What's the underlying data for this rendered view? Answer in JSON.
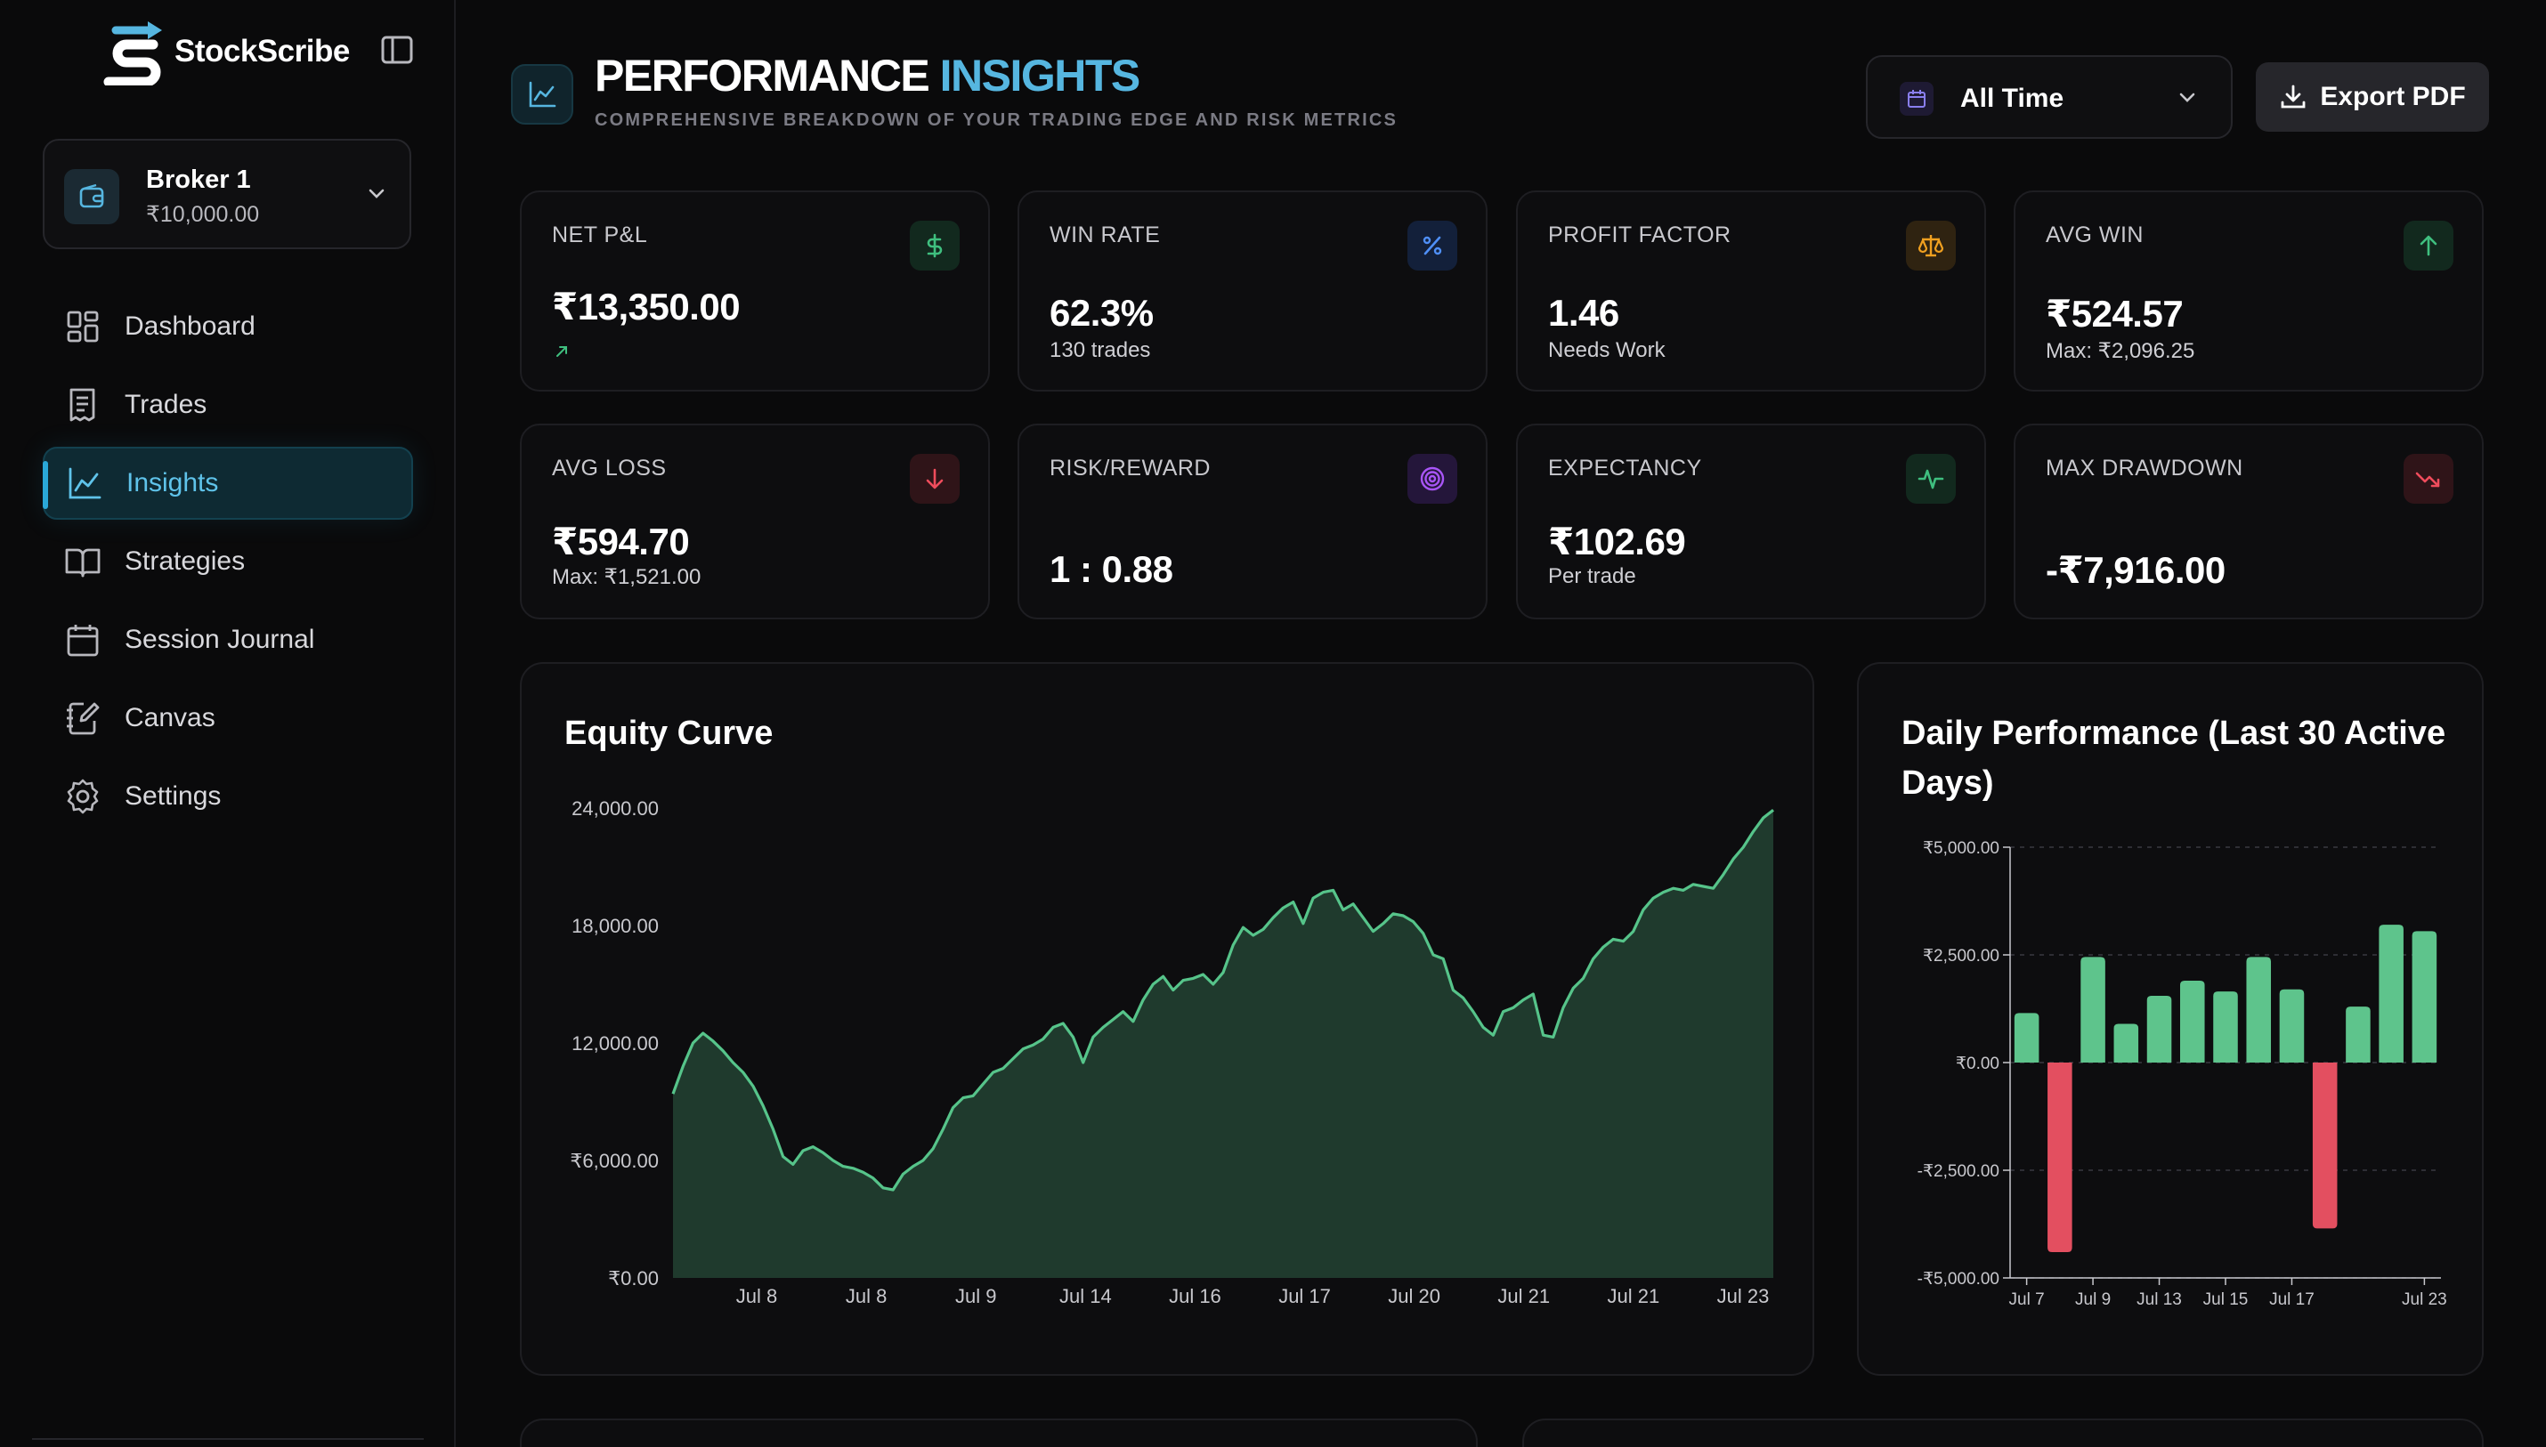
{
  "brand": {
    "name": "StockScribe"
  },
  "broker": {
    "name": "Broker 1",
    "balance": "₹10,000.00"
  },
  "nav": {
    "items": [
      {
        "label": "Dashboard",
        "icon": "dashboard-icon",
        "active": false
      },
      {
        "label": "Trades",
        "icon": "receipt-icon",
        "active": false
      },
      {
        "label": "Insights",
        "icon": "chart-icon",
        "active": true
      },
      {
        "label": "Strategies",
        "icon": "book-icon",
        "active": false
      },
      {
        "label": "Session Journal",
        "icon": "calendar-icon",
        "active": false
      },
      {
        "label": "Canvas",
        "icon": "notebook-pen-icon",
        "active": false
      },
      {
        "label": "Settings",
        "icon": "gear-icon",
        "active": false
      }
    ]
  },
  "header": {
    "title_main": "PERFORMANCE",
    "title_accent": "INSIGHTS",
    "subtitle": "COMPREHENSIVE BREAKDOWN OF YOUR TRADING EDGE AND RISK METRICS",
    "range_label": "All Time",
    "export_label": "Export PDF"
  },
  "stats": [
    {
      "title": "NET P&L",
      "value": "₹13,350.00",
      "sub": "",
      "icon": "dollar-icon",
      "color": "#3fbf7f"
    },
    {
      "title": "WIN RATE",
      "value": "62.3%",
      "sub": "130 trades",
      "icon": "percent-icon",
      "color": "#4f8ff7"
    },
    {
      "title": "PROFIT FACTOR",
      "value": "1.46",
      "sub": "Needs Work",
      "icon": "scale-icon",
      "color": "#f0a020"
    },
    {
      "title": "AVG WIN",
      "value": "₹524.57",
      "sub": "Max: ₹2,096.25",
      "icon": "arrow-up-icon",
      "color": "#3fbf7f"
    },
    {
      "title": "AVG LOSS",
      "value": "₹594.70",
      "sub": "Max: ₹1,521.00",
      "icon": "arrow-down-icon",
      "color": "#ef4c5c"
    },
    {
      "title": "RISK/REWARD",
      "value": "1 : 0.88",
      "sub": "",
      "icon": "target-icon",
      "color": "#a855f7"
    },
    {
      "title": "EXPECTANCY",
      "value": "₹102.69",
      "sub": "Per trade",
      "icon": "activity-icon",
      "color": "#3fbf7f"
    },
    {
      "title": "MAX DRAWDOWN",
      "value": "-₹7,916.00",
      "sub": "",
      "icon": "trend-down-icon",
      "color": "#ef4c5c"
    }
  ],
  "equity": {
    "title": "Equity Curve"
  },
  "daily": {
    "title": "Daily Performance (Last 30 Active Days)"
  },
  "chart_data": [
    {
      "type": "area",
      "title": "Equity Curve",
      "ylim": [
        0,
        24000
      ],
      "yticks": [
        "24,000.00",
        "18,000.00",
        "12,000.00",
        "₹6,000.00",
        "₹0.00"
      ],
      "ytick_values": [
        24000,
        18000,
        12000,
        6000,
        0
      ],
      "xticks": [
        "Jul 8",
        "Jul 8",
        "Jul 9",
        "Jul 14",
        "Jul 16",
        "Jul 17",
        "Jul 20",
        "Jul 21",
        "Jul 21",
        "Jul 23"
      ],
      "color": "#56c48a",
      "values": [
        9400,
        10800,
        12000,
        12500,
        12100,
        11600,
        11000,
        10500,
        9800,
        8800,
        7600,
        6200,
        5800,
        6500,
        6700,
        6400,
        6000,
        5700,
        5600,
        5400,
        5100,
        4600,
        4500,
        5300,
        5700,
        6000,
        6600,
        7600,
        8700,
        9200,
        9300,
        9900,
        10500,
        10700,
        11200,
        11700,
        11900,
        12200,
        12800,
        13000,
        12300,
        11000,
        12300,
        12800,
        13200,
        13600,
        13100,
        14200,
        15000,
        15400,
        14700,
        15200,
        15300,
        15500,
        15000,
        15600,
        17000,
        17900,
        17500,
        17800,
        18400,
        18900,
        19200,
        18100,
        19400,
        19700,
        19800,
        18800,
        19100,
        18400,
        17700,
        18100,
        18600,
        18500,
        18200,
        17600,
        16500,
        16300,
        14700,
        14300,
        13600,
        12800,
        12400,
        13600,
        13800,
        14200,
        14500,
        12400,
        12300,
        13800,
        14800,
        15300,
        16300,
        16900,
        17300,
        17200,
        17700,
        18800,
        19400,
        19700,
        19900,
        19800,
        20100,
        20000,
        19900,
        20600,
        21400,
        22000,
        22800,
        23500,
        23900
      ]
    },
    {
      "type": "bar",
      "title": "Daily Performance (Last 30 Active Days)",
      "ylim": [
        -5000,
        5000
      ],
      "yticks": [
        "₹5,000.00",
        "₹2,500.00",
        "₹0.00",
        "-₹2,500.00",
        "-₹5,000.00"
      ],
      "ytick_values": [
        5000,
        2500,
        0,
        -2500,
        -5000
      ],
      "xticks": [
        "Jul 7",
        "Jul 9",
        "Jul 13",
        "Jul 15",
        "Jul 17",
        "Jul 23"
      ],
      "xtick_positions": [
        0,
        2,
        4,
        6,
        8,
        12
      ],
      "values": [
        1150,
        -4400,
        2450,
        900,
        1550,
        1900,
        1650,
        2450,
        1700,
        -3850,
        1300,
        3200,
        3050
      ],
      "positive_color": "#5ec48c",
      "negative_color": "#e34f60",
      "grid": true
    }
  ]
}
